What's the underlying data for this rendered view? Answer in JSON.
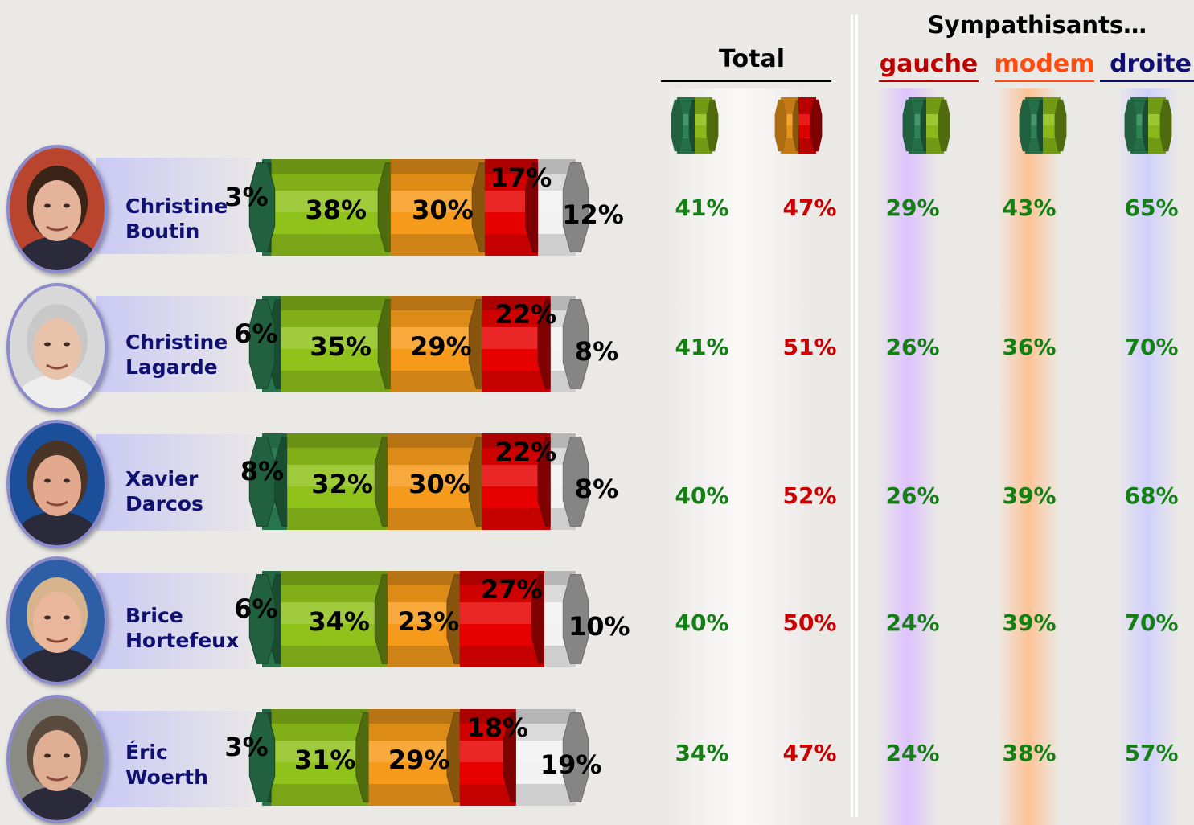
{
  "header": {
    "total": "Total",
    "sympathisants": "Sympathisants…",
    "gauche": "gauche",
    "modem": "modem",
    "droite": "droite"
  },
  "colors": {
    "dark_green": "#2f8a5a",
    "light_green": "#8fc21a",
    "orange": "#f59a1a",
    "red": "#e60000",
    "white": "#f2f2f2",
    "text_green": "#138013",
    "text_red": "#cc0000",
    "name_blue": "#101070",
    "header_red": "#c00000",
    "header_orange": "#ff4a10",
    "header_navy": "#101070"
  },
  "chart_data": {
    "type": "bar",
    "stacked": true,
    "horizontal": true,
    "categories": [
      "Christine Boutin",
      "Christine Lagarde",
      "Xavier Darcos",
      "Brice Hortefeux",
      "Éric Woerth"
    ],
    "series": [
      {
        "values": [
          3,
          6,
          8,
          6,
          3
        ],
        "color": "#2f8a5a"
      },
      {
        "values": [
          38,
          35,
          32,
          34,
          31
        ],
        "color": "#8fc21a"
      },
      {
        "values": [
          30,
          29,
          30,
          23,
          29
        ],
        "color": "#f59a1a"
      },
      {
        "values": [
          17,
          22,
          22,
          27,
          18
        ],
        "color": "#e60000"
      },
      {
        "values": [
          12,
          8,
          8,
          10,
          19
        ],
        "color": "#f2f2f2"
      }
    ]
  },
  "rows": [
    {
      "first": "Christine",
      "last": "Boutin",
      "stack": [
        "3%",
        "38%",
        "30%",
        "17%",
        "12%"
      ],
      "total_pos": "41%",
      "total_neg": "47%",
      "gauche": "29%",
      "modem": "43%",
      "droite": "65%"
    },
    {
      "first": "Christine",
      "last": "Lagarde",
      "stack": [
        "6%",
        "35%",
        "29%",
        "22%",
        "8%"
      ],
      "total_pos": "41%",
      "total_neg": "51%",
      "gauche": "26%",
      "modem": "36%",
      "droite": "70%"
    },
    {
      "first": "Xavier",
      "last": "Darcos",
      "stack": [
        "8%",
        "32%",
        "30%",
        "22%",
        "8%"
      ],
      "total_pos": "40%",
      "total_neg": "52%",
      "gauche": "26%",
      "modem": "39%",
      "droite": "68%"
    },
    {
      "first": "Brice",
      "last": "Hortefeux",
      "stack": [
        "6%",
        "34%",
        "23%",
        "27%",
        "10%"
      ],
      "total_pos": "40%",
      "total_neg": "50%",
      "gauche": "24%",
      "modem": "39%",
      "droite": "70%"
    },
    {
      "first": "Éric",
      "last": "Woerth",
      "stack": [
        "3%",
        "31%",
        "29%",
        "18%",
        "19%"
      ],
      "total_pos": "34%",
      "total_neg": "47%",
      "gauche": "24%",
      "modem": "38%",
      "droite": "57%"
    }
  ]
}
